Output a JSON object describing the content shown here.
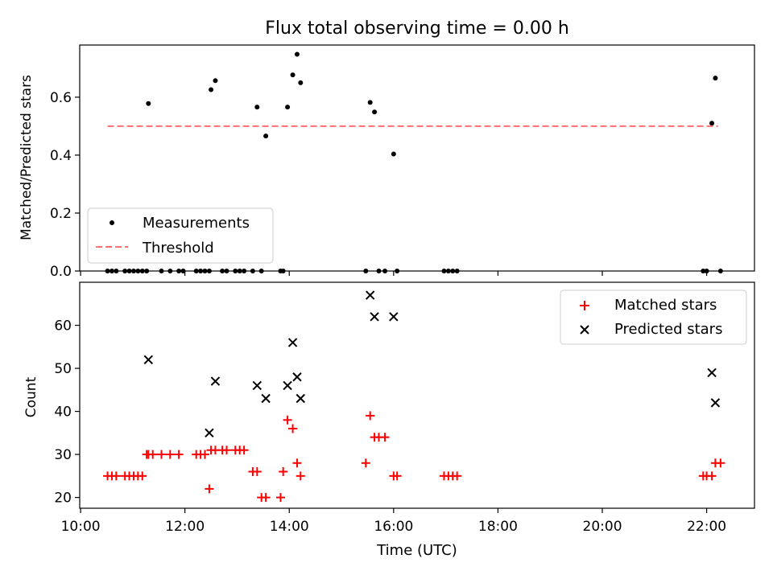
{
  "figure": {
    "title": "Flux total observing time = 0.00 h"
  },
  "colors": {
    "measurement": "#000000",
    "threshold": "#ff7070",
    "matched": "#ff0000",
    "predicted": "#000000"
  },
  "chart_data": [
    {
      "type": "scatter",
      "panel": "top",
      "title": "Flux total observing time = 0.00 h",
      "xlabel": "",
      "ylabel": "Matched/Predicted stars",
      "xlim": [
        "09:59",
        "22:55"
      ],
      "ylim": [
        0,
        0.78
      ],
      "yticks": [
        0.0,
        0.2,
        0.4,
        0.6
      ],
      "ytick_labels": [
        "0.0",
        "0.2",
        "0.4",
        "0.6"
      ],
      "xticks": [
        "10:00",
        "12:00",
        "14:00",
        "16:00",
        "18:00",
        "20:00",
        "22:00"
      ],
      "show_xtick_labels": false,
      "grid": false,
      "legend": {
        "placement": "lower-left",
        "entries": [
          "Measurements",
          "Threshold"
        ]
      },
      "series": [
        {
          "name": "Measurements",
          "kind": "scatter-dot",
          "x": [
            "10:31",
            "10:36",
            "10:41",
            "10:51",
            "10:56",
            "11:01",
            "11:06",
            "11:11",
            "11:16",
            "11:18",
            "11:33",
            "11:43",
            "11:53",
            "11:58",
            "12:13",
            "12:18",
            "12:23",
            "12:28",
            "12:30",
            "12:35",
            "12:43",
            "12:48",
            "12:58",
            "13:03",
            "13:08",
            "13:18",
            "13:23",
            "13:28",
            "13:33",
            "13:50",
            "13:53",
            "13:58",
            "14:04",
            "14:09",
            "14:13",
            "15:28",
            "15:33",
            "15:38",
            "15:43",
            "15:50",
            "16:00",
            "16:04",
            "16:58",
            "17:03",
            "17:08",
            "17:13",
            "21:56",
            "22:00",
            "22:06",
            "22:10",
            "22:16"
          ],
          "y": [
            0,
            0,
            0,
            0,
            0,
            0,
            0,
            0,
            0,
            0.578,
            0,
            0,
            0,
            0,
            0,
            0,
            0,
            0,
            0.626,
            0.657,
            0,
            0,
            0,
            0,
            0,
            0,
            0.566,
            0,
            0.466,
            0,
            0,
            0.566,
            0.677,
            0.748,
            0.65,
            0,
            0.582,
            0.549,
            0,
            0,
            0.404,
            0,
            0,
            0,
            0,
            0,
            0,
            0,
            0.51,
            0.666,
            0
          ]
        },
        {
          "name": "Threshold",
          "kind": "dashed-line",
          "x": [
            "10:31",
            "22:13"
          ],
          "y": [
            0.5,
            0.5
          ]
        }
      ]
    },
    {
      "type": "scatter",
      "panel": "bottom",
      "xlabel": "Time (UTC)",
      "ylabel": "Count",
      "xlim": [
        "09:59",
        "22:55"
      ],
      "ylim": [
        17.5,
        70
      ],
      "yticks": [
        20,
        30,
        40,
        50,
        60
      ],
      "ytick_labels": [
        "20",
        "30",
        "40",
        "50",
        "60"
      ],
      "xticks": [
        "10:00",
        "12:00",
        "14:00",
        "16:00",
        "18:00",
        "20:00",
        "22:00"
      ],
      "xtick_labels": [
        "10:00",
        "12:00",
        "14:00",
        "16:00",
        "18:00",
        "20:00",
        "22:00"
      ],
      "grid": false,
      "legend": {
        "placement": "top-right",
        "entries": [
          "Matched stars",
          "Predicted stars"
        ]
      },
      "series": [
        {
          "name": "Matched stars",
          "kind": "plus",
          "x": [
            "10:31",
            "10:36",
            "10:41",
            "10:51",
            "10:56",
            "11:01",
            "11:06",
            "11:11",
            "11:16",
            "11:18",
            "11:23",
            "11:33",
            "11:43",
            "11:53",
            "12:13",
            "12:18",
            "12:23",
            "12:28",
            "12:30",
            "12:35",
            "12:43",
            "12:48",
            "12:58",
            "13:03",
            "13:08",
            "13:18",
            "13:23",
            "13:28",
            "13:33",
            "13:50",
            "13:53",
            "13:58",
            "14:04",
            "14:09",
            "14:13",
            "15:28",
            "15:33",
            "15:38",
            "15:43",
            "15:50",
            "16:00",
            "16:04",
            "16:58",
            "17:03",
            "17:08",
            "17:13",
            "21:56",
            "22:00",
            "22:06",
            "22:10",
            "22:16"
          ],
          "y": [
            25,
            25,
            25,
            25,
            25,
            25,
            25,
            25,
            30,
            30,
            30,
            30,
            30,
            30,
            30,
            30,
            30,
            22,
            31,
            31,
            31,
            31,
            31,
            31,
            31,
            26,
            26,
            20,
            20,
            20,
            26,
            38,
            36,
            28,
            25,
            28,
            39,
            34,
            34,
            34,
            25,
            25,
            25,
            25,
            25,
            25,
            25,
            25,
            25,
            28,
            28
          ]
        },
        {
          "name": "Predicted stars",
          "kind": "x",
          "x": [
            "11:18",
            "12:28",
            "12:35",
            "13:23",
            "13:33",
            "13:58",
            "14:04",
            "14:09",
            "14:13",
            "15:33",
            "15:38",
            "16:00",
            "22:06",
            "22:10"
          ],
          "y": [
            52,
            35,
            47,
            46,
            43,
            46,
            56,
            48,
            43,
            67,
            62,
            62,
            49,
            42
          ]
        }
      ]
    }
  ]
}
